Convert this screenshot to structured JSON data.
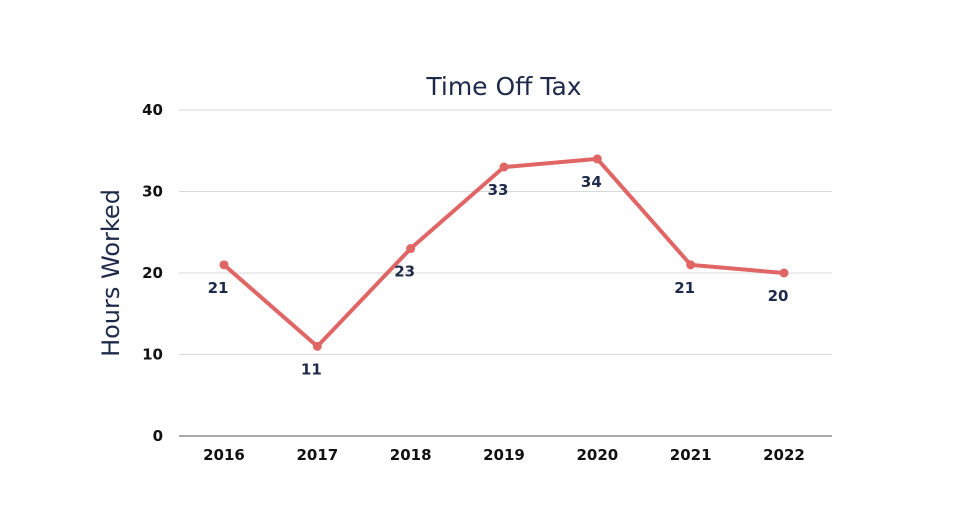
{
  "chart_data": {
    "type": "line",
    "title": "Time Off Tax",
    "xlabel": "",
    "ylabel": "Hours Worked",
    "categories": [
      "2016",
      "2017",
      "2018",
      "2019",
      "2020",
      "2021",
      "2022"
    ],
    "series": [
      {
        "values": [
          21,
          11,
          23,
          33,
          34,
          21,
          20
        ]
      }
    ],
    "ylim": [
      0,
      40
    ],
    "yticks": [
      "0",
      "10",
      "20",
      "30",
      "40"
    ],
    "data_labels": [
      "21",
      "11",
      "23",
      "33",
      "34",
      "21",
      "20"
    ],
    "grid": true,
    "legend": "none",
    "colors": {
      "line": "#e06666",
      "title": "#1f2a4a",
      "labels": "#1f2a4a",
      "grid": "#d9d9d9"
    }
  }
}
